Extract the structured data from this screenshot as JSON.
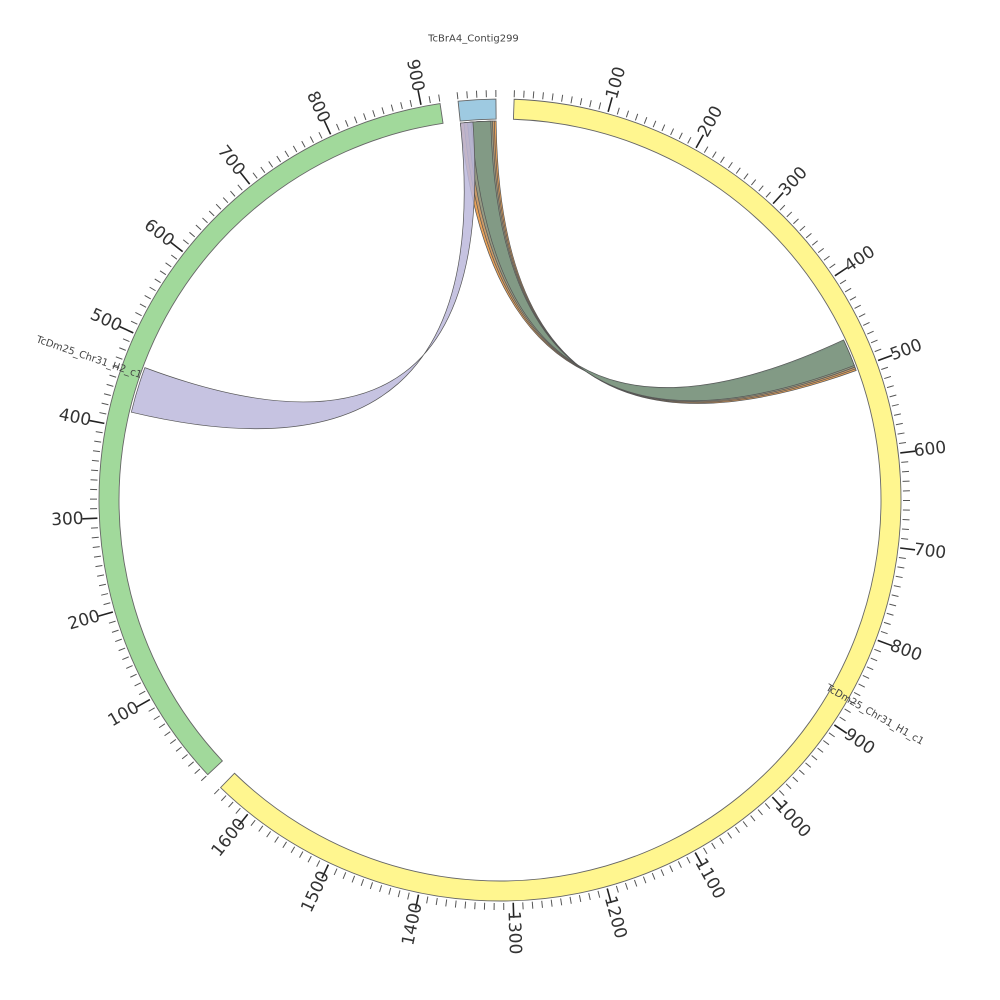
{
  "chart_data": {
    "type": "circos",
    "title": "",
    "sequences": [
      {
        "id": "contig",
        "name": "TcBrA4_Contig299",
        "length": 40,
        "color": "#9ecae1",
        "tick_labels": []
      },
      {
        "id": "h1",
        "name": "TcDm25_Chr31_H1_c1",
        "length": 1640,
        "color": "#fff68f",
        "tick_labels": [
          "100",
          "200",
          "300",
          "400",
          "500",
          "600",
          "700",
          "800",
          "900",
          "1000",
          "1100",
          "1200",
          "1300",
          "1400",
          "1500",
          "1600"
        ]
      },
      {
        "id": "h2",
        "name": "TcDm25_Chr31_H2_c1",
        "length": 920,
        "color": "#a1d99b",
        "tick_labels": [
          "100",
          "200",
          "300",
          "400",
          "500",
          "600",
          "700",
          "800",
          "900"
        ]
      }
    ],
    "links": [
      {
        "source": "contig",
        "source_range": [
          0,
          40
        ],
        "target": "h1",
        "target_range": [
          468,
          502
        ],
        "color": "#e8923a"
      },
      {
        "source": "contig",
        "source_range": [
          4,
          38
        ],
        "target": "h1",
        "target_range": [
          467,
          500
        ],
        "color": "#c49a6c"
      },
      {
        "source": "contig",
        "source_range": [
          8,
          36
        ],
        "target": "h1",
        "target_range": [
          466,
          498
        ],
        "color": "#8c9a88"
      },
      {
        "source": "contig",
        "source_range": [
          12,
          34
        ],
        "target": "h1",
        "target_range": [
          465,
          496
        ],
        "color": "#7f9a86"
      },
      {
        "source": "contig",
        "source_range": [
          0,
          14
        ],
        "target": "h2",
        "target_range": [
          418,
          470
        ],
        "color": "#bcb8dc"
      }
    ]
  }
}
